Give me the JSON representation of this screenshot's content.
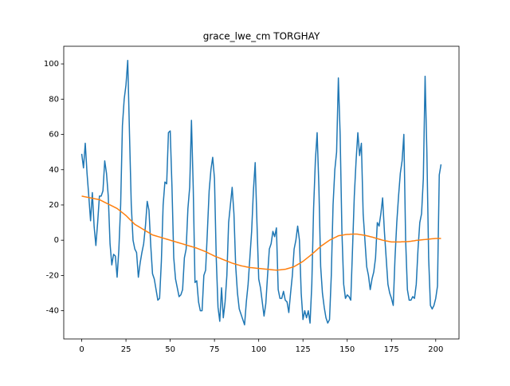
{
  "chart_data": {
    "type": "line",
    "title": "grace_lwe_cm TORGHAY",
    "x": [
      0,
      1,
      2,
      3,
      4,
      5,
      6,
      7,
      8,
      9,
      10,
      11,
      12,
      13,
      14,
      15,
      16,
      17,
      18,
      19,
      20,
      21,
      22,
      23,
      24,
      25,
      26,
      27,
      28,
      29,
      30,
      31,
      32,
      33,
      34,
      35,
      36,
      37,
      38,
      39,
      40,
      41,
      42,
      43,
      44,
      45,
      46,
      47,
      48,
      49,
      50,
      51,
      52,
      53,
      54,
      55,
      56,
      57,
      58,
      59,
      60,
      61,
      62,
      63,
      64,
      65,
      66,
      67,
      68,
      69,
      70,
      71,
      72,
      73,
      74,
      75,
      76,
      77,
      78,
      79,
      80,
      81,
      82,
      83,
      84,
      85,
      86,
      87,
      88,
      89,
      90,
      91,
      92,
      93,
      94,
      95,
      96,
      97,
      98,
      99,
      100,
      101,
      102,
      103,
      104,
      105,
      106,
      107,
      108,
      109,
      110,
      111,
      112,
      113,
      114,
      115,
      116,
      117,
      118,
      119,
      120,
      121,
      122,
      123,
      124,
      125,
      126,
      127,
      128,
      129,
      130,
      131,
      132,
      133,
      134,
      135,
      136,
      137,
      138,
      139,
      140,
      141,
      142,
      143,
      144,
      145,
      146,
      147,
      148,
      149,
      150,
      151,
      152,
      153,
      154,
      155,
      156,
      157,
      158,
      159,
      160,
      161,
      162,
      163,
      164,
      165,
      166,
      167,
      168,
      169,
      170,
      171,
      172,
      173,
      174,
      175,
      176,
      177,
      178,
      179,
      180,
      181,
      182,
      183,
      184,
      185,
      186,
      187,
      188,
      189,
      190,
      191,
      192,
      193,
      194,
      195,
      196,
      197,
      198,
      199,
      200,
      201,
      202,
      203
    ],
    "series": [
      {
        "color": "#1f77b4",
        "values": [
          49,
          41,
          55,
          38,
          25,
          11,
          27,
          8,
          -3,
          10,
          25,
          25,
          28,
          45,
          38,
          25,
          -2,
          -14,
          -8,
          -9,
          -21,
          -5,
          20,
          65,
          80,
          88,
          102,
          60,
          20,
          0,
          -5,
          -7,
          -21,
          -13,
          -7,
          -2,
          8,
          22,
          17,
          -3,
          -19,
          -22,
          -28,
          -34,
          -33,
          -12,
          20,
          33,
          32,
          61,
          62,
          30,
          -10,
          -22,
          -27,
          -32,
          -31,
          -28,
          -10,
          -5,
          18,
          30,
          68,
          30,
          -24,
          -23,
          -35,
          -40,
          -40,
          -20,
          -17,
          5,
          28,
          40,
          47,
          35,
          -10,
          -38,
          -46,
          -27,
          -44,
          -35,
          -20,
          10,
          20,
          30,
          15,
          -15,
          -30,
          -39,
          -42,
          -45,
          -48,
          -35,
          -25,
          -10,
          5,
          28,
          44,
          10,
          -22,
          -27,
          -35,
          -43,
          -36,
          -20,
          -5,
          -2,
          5,
          2,
          7,
          -28,
          -33,
          -33,
          -29,
          -34,
          -35,
          -41,
          -30,
          -20,
          -5,
          0,
          8,
          0,
          -30,
          -45,
          -40,
          -44,
          -40,
          -47,
          -25,
          18,
          45,
          61,
          30,
          -15,
          -30,
          -38,
          -44,
          -47,
          -45,
          -20,
          20,
          40,
          50,
          92,
          60,
          5,
          -25,
          -33,
          -31,
          -32,
          -34,
          -5,
          25,
          45,
          61,
          48,
          55,
          15,
          0,
          -15,
          -20,
          -28,
          -22,
          -18,
          -10,
          10,
          8,
          15,
          24,
          5,
          -10,
          -25,
          -30,
          -33,
          -37,
          -10,
          10,
          25,
          38,
          45,
          60,
          0,
          -28,
          -34,
          -34,
          -32,
          -33,
          -25,
          -5,
          10,
          15,
          35,
          93,
          50,
          -10,
          -37,
          -39,
          -37,
          -33,
          -26,
          37,
          43
        ]
      },
      {
        "color": "#ff7f0e",
        "values": [
          25,
          24.8,
          24.6,
          24.4,
          24.2,
          24,
          23.8,
          23.6,
          23.4,
          23.2,
          23,
          22.5,
          22,
          21.5,
          21,
          20.5,
          20,
          19.5,
          19,
          18.5,
          18,
          17.2,
          16.4,
          15.6,
          14.8,
          14,
          13,
          12,
          11,
          10,
          9,
          8.4,
          7.8,
          7.2,
          6.6,
          6,
          5.4,
          4.8,
          4.2,
          3.6,
          3,
          2.7,
          2.4,
          2.1,
          1.8,
          1.5,
          1.2,
          0.9,
          0.6,
          0.3,
          0,
          -0.3,
          -0.6,
          -0.9,
          -1.2,
          -1.5,
          -1.8,
          -2.1,
          -2.4,
          -2.7,
          -3,
          -3.3,
          -3.6,
          -3.9,
          -4.2,
          -4.5,
          -4.9,
          -5.3,
          -5.7,
          -6.1,
          -6.5,
          -7,
          -7.5,
          -8,
          -8.5,
          -9,
          -9.4,
          -9.8,
          -10.2,
          -10.6,
          -11,
          -11.4,
          -11.8,
          -12.2,
          -12.6,
          -13,
          -13.3,
          -13.6,
          -13.9,
          -14.2,
          -14.5,
          -14.7,
          -14.9,
          -15.1,
          -15.3,
          -15.5,
          -15.6,
          -15.7,
          -15.8,
          -15.9,
          -16,
          -16.1,
          -16.2,
          -16.3,
          -16.4,
          -16.5,
          -16.6,
          -16.7,
          -16.8,
          -16.9,
          -17,
          -16.9,
          -16.8,
          -16.7,
          -16.6,
          -16.5,
          -16.2,
          -15.9,
          -15.6,
          -15.3,
          -15,
          -14.4,
          -13.8,
          -13.2,
          -12.6,
          -12,
          -11.2,
          -10.4,
          -9.6,
          -8.8,
          -8,
          -7.1,
          -6.2,
          -5.3,
          -4.4,
          -3.5,
          -2.8,
          -2.1,
          -1.4,
          -0.7,
          0,
          0.5,
          1,
          1.5,
          2,
          2.5,
          2.7,
          2.8,
          3,
          3.2,
          3.3,
          3.3,
          3.4,
          3.4,
          3.5,
          3.5,
          3.4,
          3.2,
          3.1,
          2.9,
          2.8,
          2.5,
          2.3,
          2,
          1.8,
          1.5,
          1.2,
          0.9,
          0.6,
          0.3,
          0,
          -0.2,
          -0.4,
          -0.6,
          -0.8,
          -1,
          -1,
          -1,
          -1,
          -1,
          -1,
          -0.9,
          -0.9,
          -0.8,
          -0.8,
          -0.7,
          -0.6,
          -0.4,
          -0.3,
          -0.1,
          0,
          0.1,
          0.2,
          0.3,
          0.4,
          0.5,
          0.6,
          0.7,
          0.8,
          0.9,
          1,
          1,
          1,
          1
        ]
      }
    ],
    "xlim": [
      -10.15,
      213.15
    ],
    "ylim": [
      -56,
      110
    ],
    "xticks": [
      0,
      25,
      50,
      75,
      100,
      125,
      150,
      175,
      200
    ],
    "yticks": [
      -40,
      -20,
      0,
      20,
      40,
      60,
      80,
      100
    ]
  }
}
